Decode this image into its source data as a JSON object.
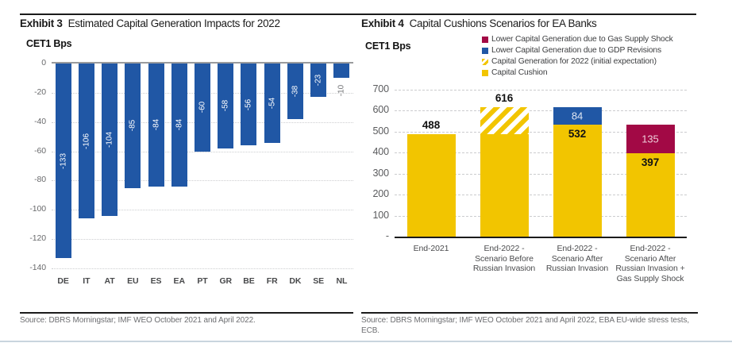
{
  "chart_data": [
    {
      "type": "bar",
      "exhibit": "Exhibit 3",
      "title": "Estimated Capital Generation Impacts for 2022",
      "ylabel": "CET1 Bps",
      "categories": [
        "DE",
        "IT",
        "AT",
        "EU",
        "ES",
        "EA",
        "PT",
        "GR",
        "BE",
        "FR",
        "DK",
        "SE",
        "NL"
      ],
      "values": [
        -133,
        -106,
        -104,
        -85,
        -84,
        -84,
        -60,
        -58,
        -56,
        -54,
        -38,
        -23,
        -10
      ],
      "ylim": [
        -140,
        0
      ],
      "yticks": [
        0,
        -20,
        -40,
        -60,
        -80,
        -100,
        -120,
        -140
      ],
      "grid": "horizontal-dotted",
      "bar_color": "#2057a5",
      "value_label_color_inside": "#ffffff",
      "value_label_color_outside": "#6f7073",
      "source": "Source: DBRS Morningstar; IMF WEO October 2021 and April 2022."
    },
    {
      "type": "stacked-bar",
      "exhibit": "Exhibit 4",
      "title": "Capital Cushions Scenarios for EA Banks",
      "ylabel": "CET1 Bps",
      "ylim": [
        0,
        700
      ],
      "yticks": [
        700,
        600,
        500,
        400,
        300,
        200,
        100,
        0
      ],
      "zero_tick_label": "-",
      "grid": "horizontal-dashed",
      "legend_position": "top-right",
      "legend": [
        {
          "label": "Lower Capital Generation due to  Gas Supply Shock",
          "color": "#a20945",
          "style": "solid"
        },
        {
          "label": "Lower Capital Generation due to GDP Revisions",
          "color": "#2057a5",
          "style": "solid"
        },
        {
          "label": "Capital Generation for 2022 (initial expectation)",
          "color": "#f2c500",
          "style": "hatch"
        },
        {
          "label": "Capital Cushion",
          "color": "#f2c500",
          "style": "solid"
        }
      ],
      "colors": {
        "Capital Cushion": "#f2c500",
        "Lower Capital Generation due to GDP Revisions": "#2057a5",
        "Lower Capital Generation due to  Gas Supply Shock": "#a20945"
      },
      "categories": [
        "End-2021",
        "End-2022 -\nScenario Before\nRussian Invasion",
        "End-2022 -\nScenario After\nRussian Invasion",
        "End-2022 -\nScenario After\nRussian Invasion +\nGas Supply Shock"
      ],
      "bars": [
        {
          "total_label": "488",
          "segments": [
            {
              "series": "Capital Cushion",
              "value": 488
            }
          ]
        },
        {
          "total_label": "616",
          "segments": [
            {
              "series": "Capital Cushion",
              "value": 488
            },
            {
              "series": "Capital Generation for 2022 (initial expectation)",
              "value": 128,
              "hatch": true
            }
          ]
        },
        {
          "segments": [
            {
              "series": "Capital Cushion",
              "value": 532,
              "label": "532",
              "label_style": "dark-top"
            },
            {
              "series": "Lower Capital Generation due to GDP Revisions",
              "value": 84,
              "label": "84",
              "label_style": "light-center",
              "label_color": "#dfe6f2"
            }
          ]
        },
        {
          "segments": [
            {
              "series": "Capital Cushion",
              "value": 397,
              "label": "397",
              "label_style": "dark-top"
            },
            {
              "series": "Lower Capital Generation due to  Gas Supply Shock",
              "value": 135,
              "label": "135",
              "label_style": "light-center",
              "label_color": "#eecdd9"
            }
          ]
        }
      ],
      "source": "Source: DBRS Morningstar; IMF WEO October 2021 and April 2022, EBA EU-wide stress tests, ECB."
    }
  ]
}
